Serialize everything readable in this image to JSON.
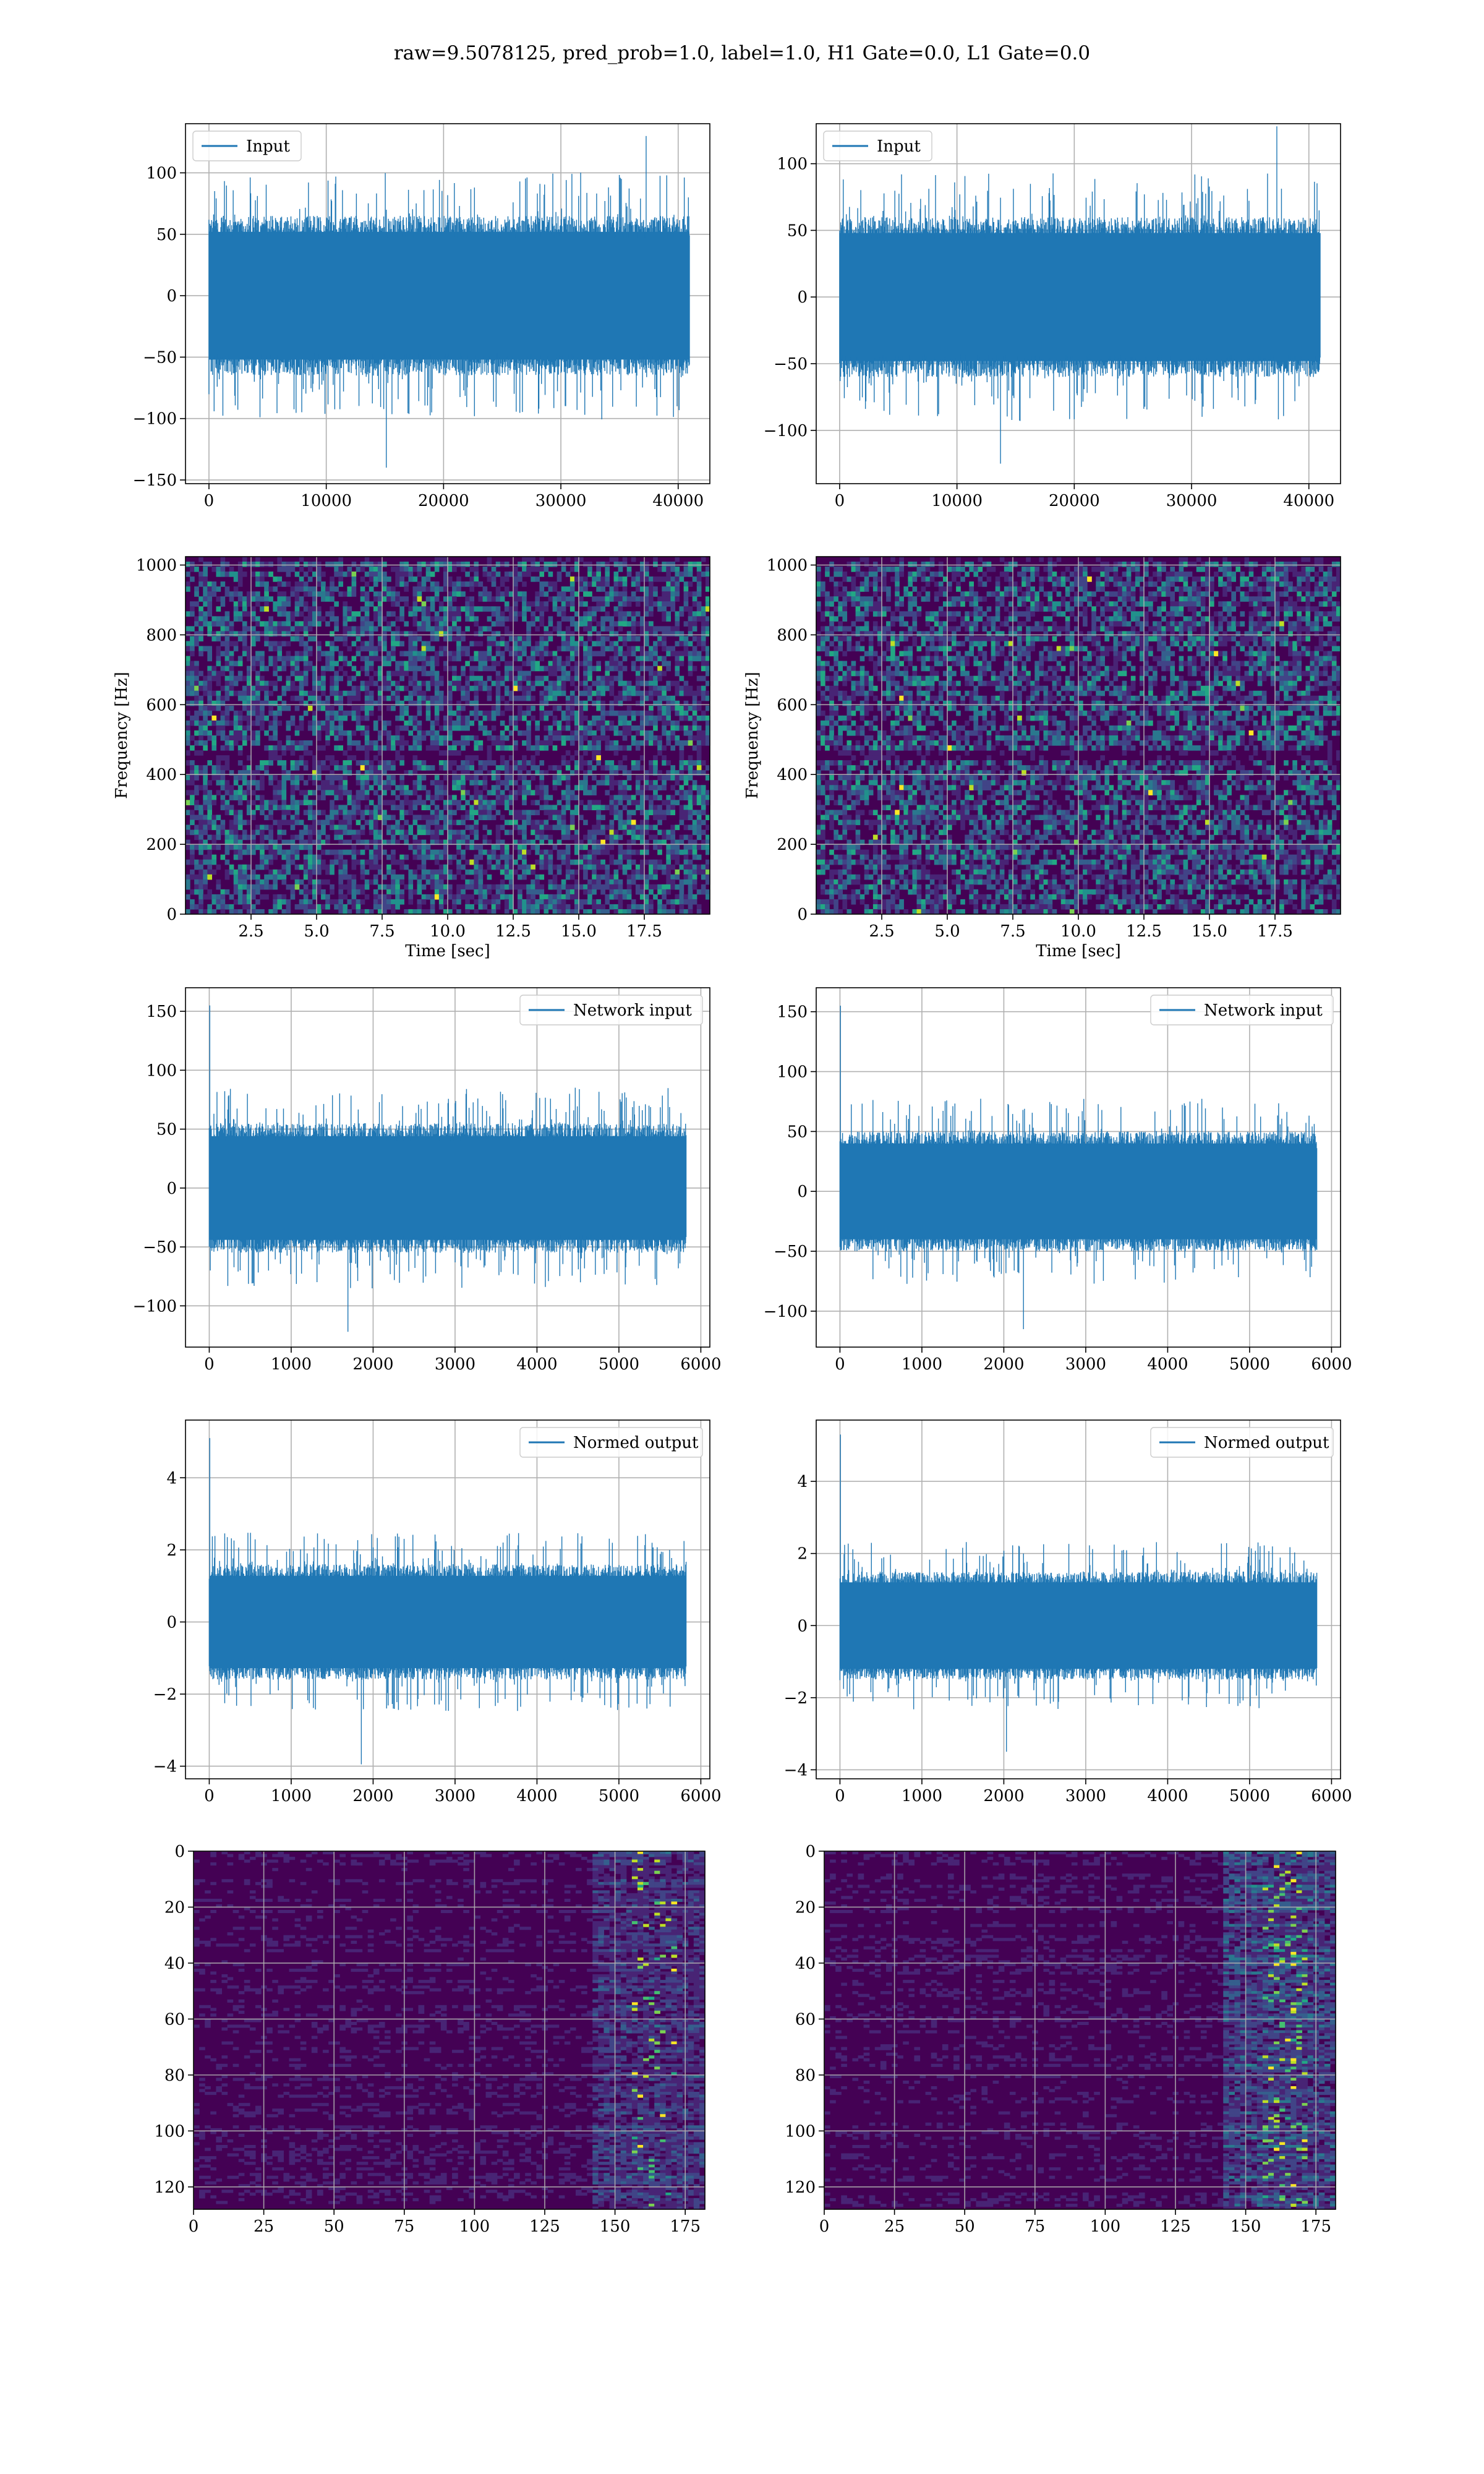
{
  "figure": {
    "suptitle": "raw=9.5078125, pred_prob=1.0, label=1.0, H1 Gate=0.0, L1 Gate=0.0"
  },
  "colors": {
    "series": "#1f77b4",
    "grid": "#b0b0b0",
    "viridis": [
      "#440154",
      "#482475",
      "#414487",
      "#355f8d",
      "#2a788e",
      "#21918c",
      "#22a884",
      "#44bf70",
      "#7ad151",
      "#bddf26",
      "#fde725"
    ]
  },
  "chart_data": [
    {
      "id": "input-left",
      "type": "line",
      "legend": "Input",
      "legend_position": "upper left",
      "xlim": [
        -2000,
        42700
      ],
      "ylim": [
        -153,
        140
      ],
      "xticks": [
        0,
        10000,
        20000,
        30000,
        40000
      ],
      "yticks": [
        -150,
        -100,
        -50,
        0,
        50,
        100
      ],
      "x_range": [
        0,
        40960
      ],
      "band": [
        -65,
        65
      ],
      "peak": 130,
      "trough": -140,
      "grid": true
    },
    {
      "id": "input-right",
      "type": "line",
      "legend": "Input",
      "legend_position": "upper left",
      "xlim": [
        -2000,
        42700
      ],
      "ylim": [
        -140,
        130
      ],
      "xticks": [
        0,
        10000,
        20000,
        30000,
        40000
      ],
      "yticks": [
        -100,
        -50,
        0,
        50,
        100
      ],
      "x_range": [
        0,
        40960
      ],
      "band": [
        -60,
        60
      ],
      "peak": 128,
      "trough": -125,
      "grid": true
    },
    {
      "id": "spectrogram-left",
      "type": "heatmap",
      "xlabel": "Time [sec]",
      "ylabel": "Frequency [Hz]",
      "xlim": [
        0,
        20
      ],
      "ylim": [
        0,
        1024
      ],
      "xticks": [
        2.5,
        5.0,
        7.5,
        10.0,
        12.5,
        15.0,
        17.5
      ],
      "yticks": [
        0,
        200,
        400,
        600,
        800,
        1000
      ],
      "grid": true
    },
    {
      "id": "spectrogram-right",
      "type": "heatmap",
      "xlabel": "Time [sec]",
      "ylabel": "Frequency [Hz]",
      "xlim": [
        0,
        20
      ],
      "ylim": [
        0,
        1024
      ],
      "xticks": [
        2.5,
        5.0,
        7.5,
        10.0,
        12.5,
        15.0,
        17.5
      ],
      "yticks": [
        0,
        200,
        400,
        600,
        800,
        1000
      ],
      "grid": true
    },
    {
      "id": "network-input-left",
      "type": "line",
      "legend": "Network input",
      "legend_position": "upper right",
      "xlim": [
        -290,
        6110
      ],
      "ylim": [
        -135,
        170
      ],
      "xticks": [
        0,
        1000,
        2000,
        3000,
        4000,
        5000,
        6000
      ],
      "yticks": [
        -100,
        -50,
        0,
        50,
        100,
        150
      ],
      "x_range": [
        0,
        5820
      ],
      "band": [
        -55,
        55
      ],
      "peak": 155,
      "trough": -122,
      "grid": true
    },
    {
      "id": "network-input-right",
      "type": "line",
      "legend": "Network input",
      "legend_position": "upper right",
      "xlim": [
        -290,
        6110
      ],
      "ylim": [
        -130,
        170
      ],
      "xticks": [
        0,
        1000,
        2000,
        3000,
        4000,
        5000,
        6000
      ],
      "yticks": [
        -100,
        -50,
        0,
        50,
        100,
        150
      ],
      "x_range": [
        0,
        5820
      ],
      "band": [
        -50,
        50
      ],
      "peak": 155,
      "trough": -115,
      "grid": true
    },
    {
      "id": "normed-output-left",
      "type": "line",
      "legend": "Normed output",
      "legend_position": "upper right",
      "xlim": [
        -290,
        6110
      ],
      "ylim": [
        -4.35,
        5.6
      ],
      "xticks": [
        0,
        1000,
        2000,
        3000,
        4000,
        5000,
        6000
      ],
      "yticks": [
        -4,
        -2,
        0,
        2,
        4
      ],
      "x_range": [
        0,
        5820
      ],
      "band": [
        -1.6,
        1.6
      ],
      "peak": 5.1,
      "trough": -3.95,
      "grid": true
    },
    {
      "id": "normed-output-right",
      "type": "line",
      "legend": "Normed output",
      "legend_position": "upper right",
      "xlim": [
        -290,
        6110
      ],
      "ylim": [
        -4.25,
        5.7
      ],
      "xticks": [
        0,
        1000,
        2000,
        3000,
        4000,
        5000,
        6000
      ],
      "yticks": [
        -4,
        -2,
        0,
        2,
        4
      ],
      "x_range": [
        0,
        5820
      ],
      "band": [
        -1.5,
        1.5
      ],
      "peak": 5.3,
      "trough": -3.5,
      "grid": true
    },
    {
      "id": "feature-map-left",
      "type": "heatmap",
      "xlim": [
        0,
        182
      ],
      "ylim": [
        128,
        0
      ],
      "xticks": [
        0,
        25,
        50,
        75,
        100,
        125,
        150,
        175
      ],
      "yticks": [
        0,
        20,
        40,
        60,
        80,
        100,
        120
      ],
      "grid": true
    },
    {
      "id": "feature-map-right",
      "type": "heatmap",
      "xlim": [
        0,
        182
      ],
      "ylim": [
        128,
        0
      ],
      "xticks": [
        0,
        25,
        50,
        75,
        100,
        125,
        150,
        175
      ],
      "yticks": [
        0,
        20,
        40,
        60,
        80,
        100,
        120
      ],
      "grid": true
    }
  ]
}
